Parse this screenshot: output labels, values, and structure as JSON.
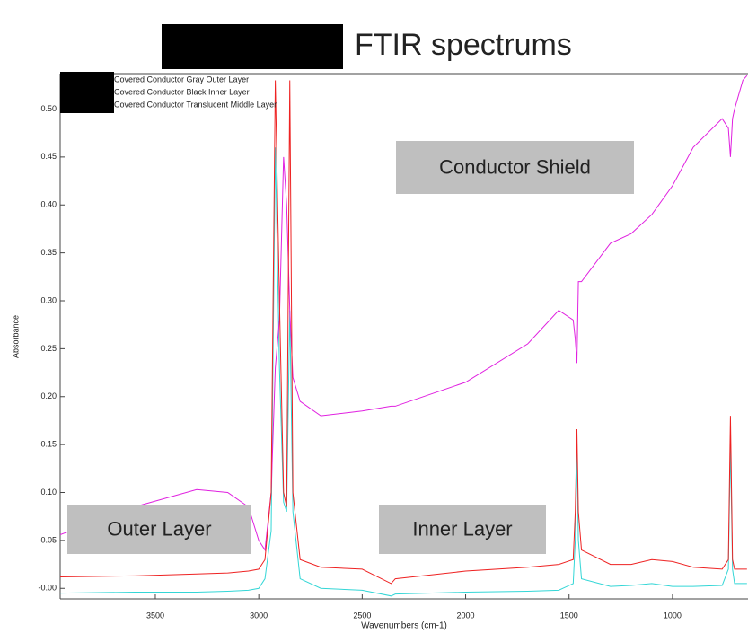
{
  "chart_data": {
    "type": "line",
    "title": "FTIR spectrums",
    "x_label": "Wavenumbers (cm-1)",
    "y_label": "Absorbance",
    "x": [
      3960,
      3600,
      3300,
      3150,
      3050,
      3000,
      2970,
      2940,
      2920,
      2900,
      2880,
      2865,
      2850,
      2835,
      2800,
      2700,
      2500,
      2360,
      2340,
      2000,
      1700,
      1550,
      1480,
      1470,
      1462,
      1455,
      1440,
      1300,
      1200,
      1100,
      1000,
      900,
      760,
      730,
      720,
      710,
      700,
      660,
      640
    ],
    "series": [
      {
        "name": "Covered Conductor Gray Outer Layer",
        "color": "#33d6d6",
        "values": [
          -0.005,
          -0.004,
          -0.004,
          -0.003,
          -0.002,
          0,
          0.01,
          0.06,
          0.46,
          0.23,
          0.09,
          0.08,
          0.29,
          0.08,
          0.01,
          0,
          -0.002,
          -0.008,
          -0.006,
          -0.004,
          -0.003,
          -0.002,
          0.005,
          0.05,
          0.14,
          0.05,
          0.01,
          0.002,
          0.003,
          0.005,
          0.002,
          0.002,
          0.003,
          0.02,
          0.15,
          0.02,
          0.005,
          0.005,
          0.005
        ]
      },
      {
        "name": "Covered Conductor Black Inner Layer",
        "color": "#e020e0",
        "values": [
          0.056,
          0.085,
          0.103,
          0.1,
          0.085,
          0.05,
          0.04,
          0.1,
          0.23,
          0.28,
          0.45,
          0.4,
          0.29,
          0.22,
          0.195,
          0.18,
          0.185,
          0.19,
          0.19,
          0.215,
          0.255,
          0.29,
          0.28,
          0.26,
          0.235,
          0.32,
          0.32,
          0.36,
          0.37,
          0.39,
          0.42,
          0.46,
          0.49,
          0.48,
          0.45,
          0.49,
          0.5,
          0.53,
          0.535
        ]
      },
      {
        "name": "Covered Conductor Translucent Middle Layer",
        "color": "#ee2222",
        "values": [
          0.012,
          0.013,
          0.015,
          0.016,
          0.018,
          0.02,
          0.03,
          0.1,
          0.53,
          0.3,
          0.1,
          0.085,
          0.53,
          0.1,
          0.03,
          0.022,
          0.02,
          0.005,
          0.01,
          0.018,
          0.022,
          0.025,
          0.03,
          0.08,
          0.166,
          0.08,
          0.04,
          0.025,
          0.025,
          0.03,
          0.028,
          0.022,
          0.02,
          0.03,
          0.18,
          0.03,
          0.02,
          0.02,
          0.02
        ]
      }
    ],
    "xlim": [
      3960,
      635
    ],
    "ylim": [
      -0.011,
      0.537
    ],
    "xticks": [
      3500,
      3000,
      2500,
      2000,
      1500,
      1000
    ],
    "yticks": [
      {
        "value": 0.5,
        "label": "0.50"
      },
      0.45,
      {
        "value": 0.4,
        "label": "0.40"
      },
      0.35,
      {
        "value": 0.3,
        "label": "0.30"
      },
      0.25,
      {
        "value": 0.2,
        "label": "0.20"
      },
      0.15,
      {
        "value": 0.1,
        "label": "0.10"
      },
      0.05,
      {
        "value": 0,
        "label": "-0.00"
      }
    ],
    "annotations": [
      {
        "text": "Conductor Shield",
        "color": "#e040e0"
      },
      {
        "text": "Outer Layer",
        "color": "#33d6d6"
      },
      {
        "text": "Inner Layer",
        "color": "#e01010"
      }
    ]
  }
}
